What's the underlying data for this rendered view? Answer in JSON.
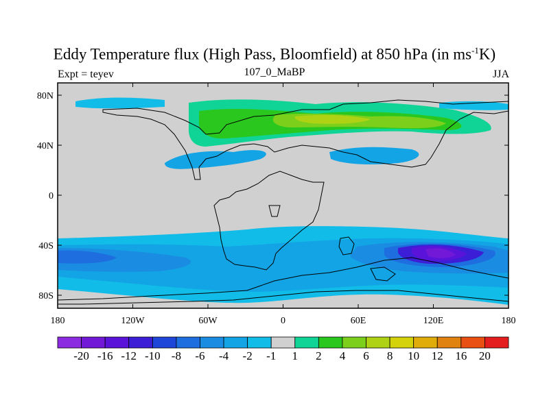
{
  "title": {
    "main": "Eddy Temperature flux (High Pass, Bloomfield) at 850 hPa (in ms",
    "sup": "-1",
    "tail": "K)"
  },
  "subtitle": {
    "left": "Expt = teyev",
    "center": "107_0_MaBP",
    "right": "JJA"
  },
  "map": {
    "lat_ticks": [
      "80N",
      "40N",
      "0",
      "40S",
      "80S"
    ],
    "lon_ticks": [
      "180",
      "120W",
      "60W",
      "0",
      "60E",
      "120E",
      "180"
    ],
    "ocean_color": "#d0d0d0",
    "coast_color": "#000000"
  },
  "colorbar": {
    "labels": [
      "-20",
      "-16",
      "-12",
      "-10",
      "-8",
      "-6",
      "-4",
      "-2",
      "-1",
      "1",
      "2",
      "4",
      "6",
      "8",
      "10",
      "12",
      "16",
      "20"
    ],
    "colors": [
      "#8c2ce0",
      "#7219d8",
      "#5a14d9",
      "#3c1ed6",
      "#1e46d8",
      "#1e6ee0",
      "#1a8ce2",
      "#12a4e4",
      "#12bce8",
      "#d0d0d0",
      "#10d496",
      "#2ac81e",
      "#7cd01c",
      "#b0d214",
      "#d4d20a",
      "#e0ac0a",
      "#e08210",
      "#e85014",
      "#e41e1e"
    ]
  }
}
